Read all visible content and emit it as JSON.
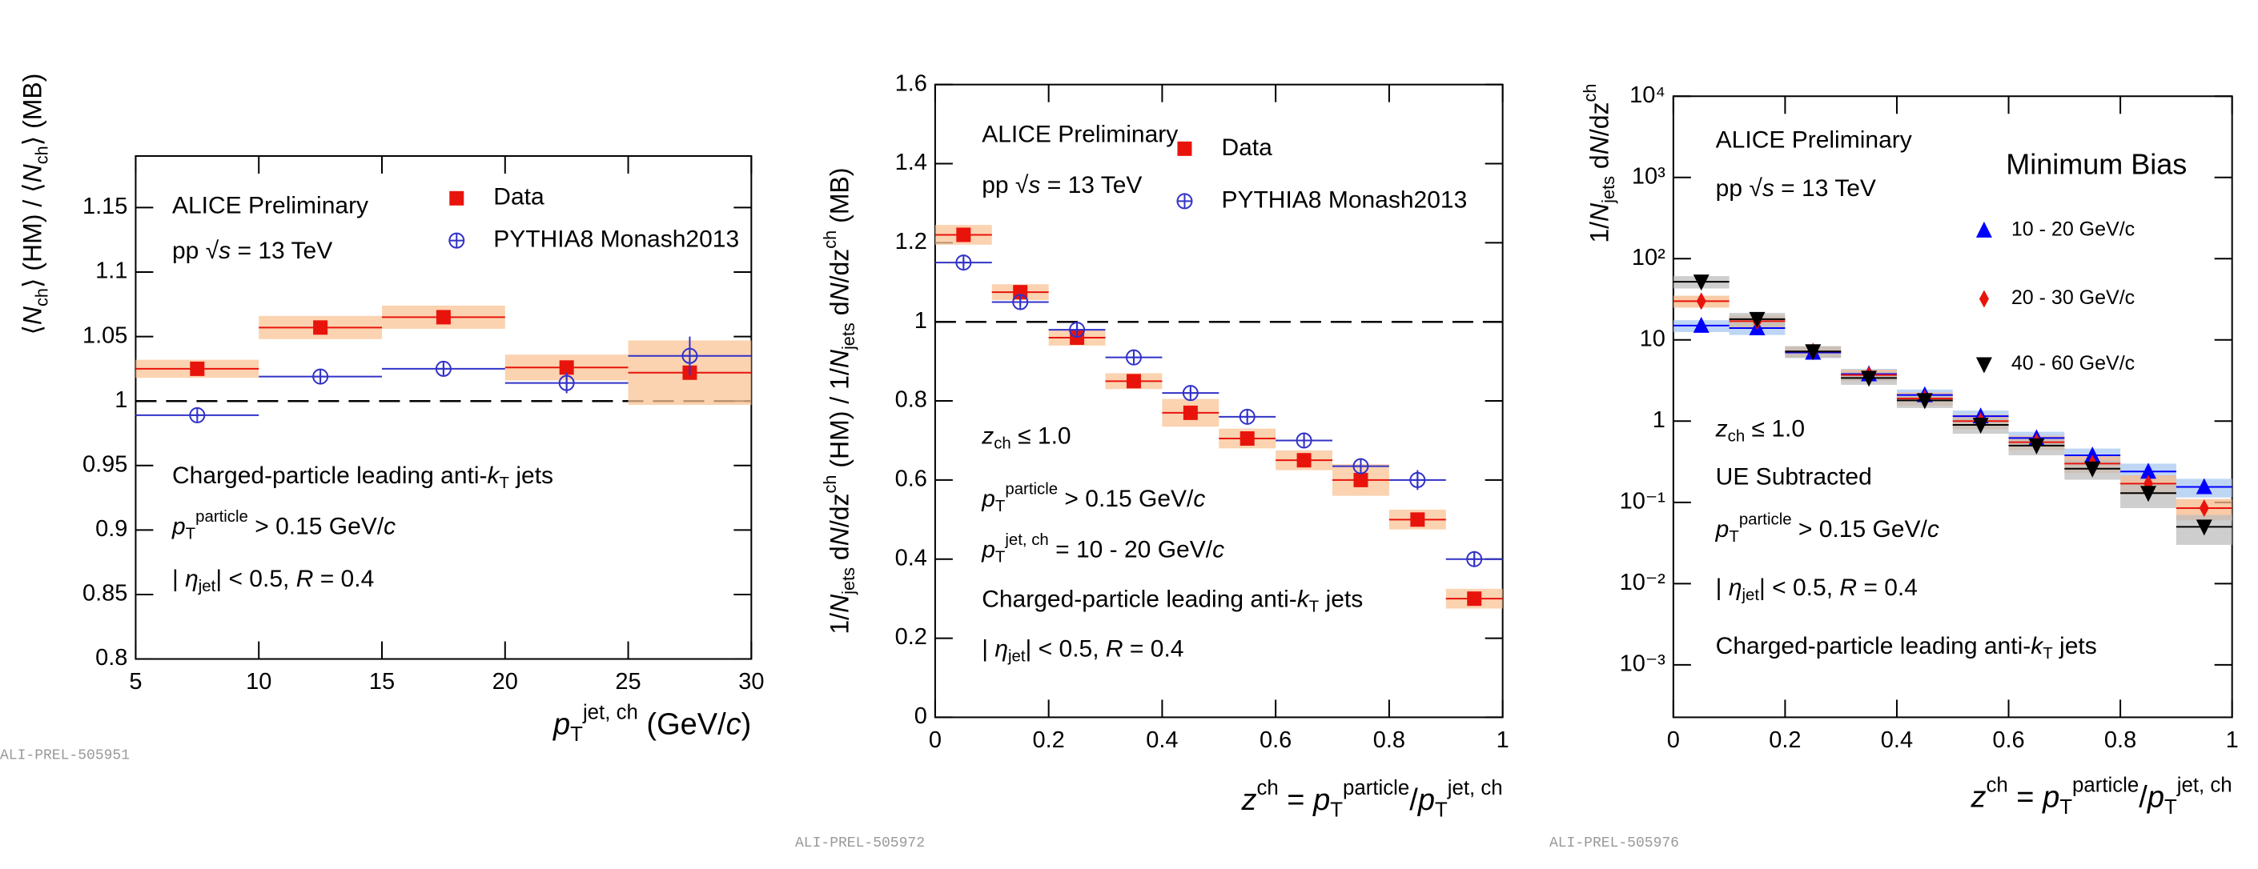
{
  "chart_data": [
    {
      "type": "errorbar",
      "yscale": "linear",
      "xlim": [
        5,
        30
      ],
      "xticks": [
        5,
        10,
        15,
        20,
        25,
        30
      ],
      "ylim": [
        0.8,
        1.19
      ],
      "yticks": [
        0.8,
        0.85,
        0.9,
        0.95,
        1,
        1.05,
        1.1,
        1.15
      ],
      "x": [
        7.5,
        12.5,
        17.5,
        22.5,
        27.5
      ],
      "xerr": [
        2.5,
        2.5,
        2.5,
        2.5,
        2.5
      ],
      "series": [
        {
          "name": "Data",
          "color": "#e8140c",
          "marker": "square",
          "sys_color": "#f9c495",
          "values": [
            1.025,
            1.057,
            1.065,
            1.026,
            1.022
          ],
          "sys": [
            0.007,
            0.009,
            0.009,
            0.01,
            0.025
          ]
        },
        {
          "name": "PYTHIA8 Monash2013",
          "color": "#3232c8",
          "marker": "open-cross",
          "values": [
            0.989,
            1.019,
            1.025,
            1.014,
            1.035
          ],
          "errors": [
            0.002,
            0.003,
            0.004,
            0.008,
            0.015
          ]
        }
      ],
      "reference_line": 1,
      "xlabel": [
        [
          "p",
          "i"
        ],
        [
          "T",
          "sub"
        ],
        [
          "jet, ch",
          "sup"
        ],
        [
          " (GeV/",
          ""
        ],
        [
          "c",
          "i"
        ],
        [
          ")",
          ""
        ]
      ],
      "ylabel": [
        [
          "⟨",
          ""
        ],
        [
          "N",
          "i"
        ],
        [
          "ch",
          "sub"
        ],
        [
          "⟩ (HM) / ⟨",
          ""
        ],
        [
          "N",
          "i"
        ],
        [
          "ch",
          "sub"
        ],
        [
          "⟩ (MB)",
          ""
        ]
      ],
      "annotations": [
        [
          [
            "ALICE Preliminary",
            ""
          ]
        ],
        [
          [
            "pp √",
            ""
          ],
          [
            "s",
            "i"
          ],
          [
            " = 13 TeV",
            ""
          ]
        ],
        [
          [
            "Charged-particle leading anti-",
            ""
          ],
          [
            "k",
            "i"
          ],
          [
            "T",
            "sub"
          ],
          [
            " jets",
            ""
          ]
        ],
        [
          [
            "p",
            "i"
          ],
          [
            "T",
            "sub"
          ],
          [
            "particle",
            "sup"
          ],
          [
            " > 0.15 GeV/",
            ""
          ],
          [
            "c",
            "i"
          ]
        ],
        [
          [
            "| ",
            ""
          ],
          [
            "η",
            "i"
          ],
          [
            "jet",
            "sub"
          ],
          [
            "| < 0.5, ",
            ""
          ],
          [
            "R",
            "i"
          ],
          [
            " = 0.4",
            ""
          ]
        ]
      ],
      "footer": "ALI-PREL-505951"
    },
    {
      "type": "errorbar",
      "yscale": "linear",
      "xlim": [
        0,
        1
      ],
      "xticks": [
        0,
        0.2,
        0.4,
        0.6,
        0.8,
        1
      ],
      "ylim": [
        0,
        1.6
      ],
      "yticks": [
        0,
        0.2,
        0.4,
        0.6,
        0.8,
        1,
        1.2,
        1.4,
        1.6
      ],
      "x": [
        0.05,
        0.15,
        0.25,
        0.35,
        0.45,
        0.55,
        0.65,
        0.75,
        0.85,
        0.95
      ],
      "xerr": [
        0.05,
        0.05,
        0.05,
        0.05,
        0.05,
        0.05,
        0.05,
        0.05,
        0.05,
        0.05
      ],
      "series": [
        {
          "name": "Data",
          "color": "#e8140c",
          "marker": "square",
          "sys_color": "#f9c495",
          "values": [
            1.22,
            1.075,
            0.96,
            0.85,
            0.77,
            0.705,
            0.65,
            0.6,
            0.5,
            0.3
          ],
          "sys": [
            0.025,
            0.02,
            0.02,
            0.02,
            0.035,
            0.025,
            0.025,
            0.04,
            0.025,
            0.025
          ]
        },
        {
          "name": "PYTHIA8 Monash2013",
          "color": "#3232c8",
          "marker": "open-cross",
          "values": [
            1.15,
            1.05,
            0.98,
            0.91,
            0.82,
            0.76,
            0.7,
            0.635,
            0.6,
            0.4
          ],
          "errors": [
            0.01,
            0.01,
            0.015,
            0.01,
            0.01,
            0.01,
            0.01,
            0.02,
            0.025,
            0.02
          ]
        }
      ],
      "reference_line": 1,
      "xlabel": [
        [
          "z",
          "i"
        ],
        [
          "ch",
          "sup"
        ],
        [
          " = ",
          ""
        ],
        [
          "p",
          "i"
        ],
        [
          "T",
          "sub"
        ],
        [
          "particle",
          "sup"
        ],
        [
          "/",
          ""
        ],
        [
          "p",
          "i"
        ],
        [
          "T",
          "sub"
        ],
        [
          "jet, ch",
          "sup"
        ]
      ],
      "ylabel": [
        [
          "1/",
          ""
        ],
        [
          "N",
          "i"
        ],
        [
          "jets",
          "sub"
        ],
        [
          " d",
          ""
        ],
        [
          "N",
          "i"
        ],
        [
          "/dz",
          ""
        ],
        [
          "ch",
          "sup"
        ],
        [
          " (HM) / 1/",
          ""
        ],
        [
          "N",
          "i"
        ],
        [
          "jets",
          "sub"
        ],
        [
          " d",
          ""
        ],
        [
          "N",
          "i"
        ],
        [
          "/dz",
          ""
        ],
        [
          "ch",
          "sup"
        ],
        [
          " (MB)",
          ""
        ]
      ],
      "annotations": [
        [
          [
            "ALICE Preliminary",
            ""
          ]
        ],
        [
          [
            "pp √",
            ""
          ],
          [
            "s",
            "i"
          ],
          [
            " = 13 TeV",
            ""
          ]
        ],
        [
          [
            "z",
            "i"
          ],
          [
            "ch",
            "sub"
          ],
          [
            " ≤ 1.0",
            ""
          ]
        ],
        [
          [
            "p",
            "i"
          ],
          [
            "T",
            "sub"
          ],
          [
            "particle",
            "sup"
          ],
          [
            " > 0.15 GeV/",
            ""
          ],
          [
            "c",
            "i"
          ]
        ],
        [
          [
            "p",
            "i"
          ],
          [
            "T",
            "sub"
          ],
          [
            "jet, ch",
            "sup"
          ],
          [
            " = 10 - 20 GeV/",
            ""
          ],
          [
            "c",
            "i"
          ]
        ],
        [
          [
            "Charged-particle leading anti-",
            ""
          ],
          [
            "k",
            "i"
          ],
          [
            "T",
            "sub"
          ],
          [
            " jets",
            ""
          ]
        ],
        [
          [
            "| ",
            ""
          ],
          [
            "η",
            "i"
          ],
          [
            "jet",
            "sub"
          ],
          [
            "| < 0.5, ",
            ""
          ],
          [
            "R",
            "i"
          ],
          [
            " = 0.4",
            ""
          ]
        ]
      ],
      "footer": "ALI-PREL-505972"
    },
    {
      "type": "errorbar",
      "yscale": "log",
      "xlim": [
        0,
        1
      ],
      "xticks": [
        0,
        0.2,
        0.4,
        0.6,
        0.8,
        1
      ],
      "ylim": [
        0.000226,
        10000
      ],
      "yticks": [
        {
          "value": 0.001,
          "label": "10⁻³"
        },
        {
          "value": 0.01,
          "label": "10⁻²"
        },
        {
          "value": 0.1,
          "label": "10⁻¹"
        },
        1,
        10,
        {
          "value": 100,
          "label": "10²"
        },
        {
          "value": 1000,
          "label": "10³"
        },
        {
          "value": 10000,
          "label": "10⁴"
        }
      ],
      "x": [
        0.05,
        0.15,
        0.25,
        0.35,
        0.45,
        0.55,
        0.65,
        0.75,
        0.85,
        0.95
      ],
      "xerr": [
        0.05,
        0.05,
        0.05,
        0.05,
        0.05,
        0.05,
        0.05,
        0.05,
        0.05,
        0.05
      ],
      "series": [
        {
          "name": "10 - 20 GeV/c",
          "color": "#0000ff",
          "marker": "triangle-up",
          "sys_color": "#a8c8f0",
          "values": [
            15,
            14,
            7,
            3.8,
            2.1,
            1.15,
            0.62,
            0.38,
            0.24,
            0.155
          ],
          "sys": [
            2.5,
            2.5,
            1,
            0.6,
            0.35,
            0.2,
            0.12,
            0.08,
            0.06,
            0.04
          ]
        },
        {
          "name": "20 - 30 GeV/c",
          "color": "#e8140c",
          "marker": "diamond",
          "sys_color": "#f7b98a",
          "values": [
            30,
            17,
            7.2,
            3.7,
            1.9,
            1,
            0.55,
            0.3,
            0.17,
            0.085
          ],
          "sys": [
            5,
            3,
            1.1,
            0.6,
            0.35,
            0.2,
            0.11,
            0.07,
            0.045,
            0.025
          ]
        },
        {
          "name": "40 - 60 GeV/c",
          "color": "#000000",
          "marker": "triangle-down",
          "sys_color": "#bdbdbd",
          "values": [
            52,
            18,
            7.2,
            3.4,
            1.8,
            0.9,
            0.5,
            0.26,
            0.13,
            0.05
          ],
          "sys": [
            9,
            3.5,
            1.2,
            0.6,
            0.35,
            0.2,
            0.12,
            0.07,
            0.045,
            0.02
          ]
        }
      ],
      "xlabel": [
        [
          "z",
          "i"
        ],
        [
          "ch",
          "sup"
        ],
        [
          " = ",
          ""
        ],
        [
          "p",
          "i"
        ],
        [
          "T",
          "sub"
        ],
        [
          "particle",
          "sup"
        ],
        [
          "/",
          ""
        ],
        [
          "p",
          "i"
        ],
        [
          "T",
          "sub"
        ],
        [
          "jet, ch",
          "sup"
        ]
      ],
      "ylabel": [
        [
          "1/",
          ""
        ],
        [
          "N",
          "i"
        ],
        [
          "jets",
          "sub"
        ],
        [
          " d",
          ""
        ],
        [
          "N",
          "i"
        ],
        [
          "/dz",
          ""
        ],
        [
          "ch",
          "sup"
        ]
      ],
      "annotations": [
        [
          [
            "ALICE Preliminary",
            ""
          ]
        ],
        [
          [
            "pp √",
            ""
          ],
          [
            "s",
            "i"
          ],
          [
            " = 13 TeV",
            ""
          ]
        ],
        [
          [
            "Minimum Bias",
            ""
          ]
        ],
        [
          [
            "z",
            "i"
          ],
          [
            "ch",
            "sub"
          ],
          [
            " ≤ 1.0",
            ""
          ]
        ],
        [
          [
            "UE Subtracted",
            ""
          ]
        ],
        [
          [
            "p",
            "i"
          ],
          [
            "T",
            "sub"
          ],
          [
            "particle",
            "sup"
          ],
          [
            " > 0.15 GeV/",
            ""
          ],
          [
            "c",
            "i"
          ]
        ],
        [
          [
            "| ",
            ""
          ],
          [
            "η",
            "i"
          ],
          [
            "jet",
            "sub"
          ],
          [
            "| < 0.5, ",
            ""
          ],
          [
            "R",
            "i"
          ],
          [
            " = 0.4",
            ""
          ]
        ],
        [
          [
            "Charged-particle leading anti-",
            ""
          ],
          [
            "k",
            "i"
          ],
          [
            "T",
            "sub"
          ],
          [
            " jets",
            ""
          ]
        ]
      ],
      "footer": "ALI-PREL-505976"
    }
  ]
}
